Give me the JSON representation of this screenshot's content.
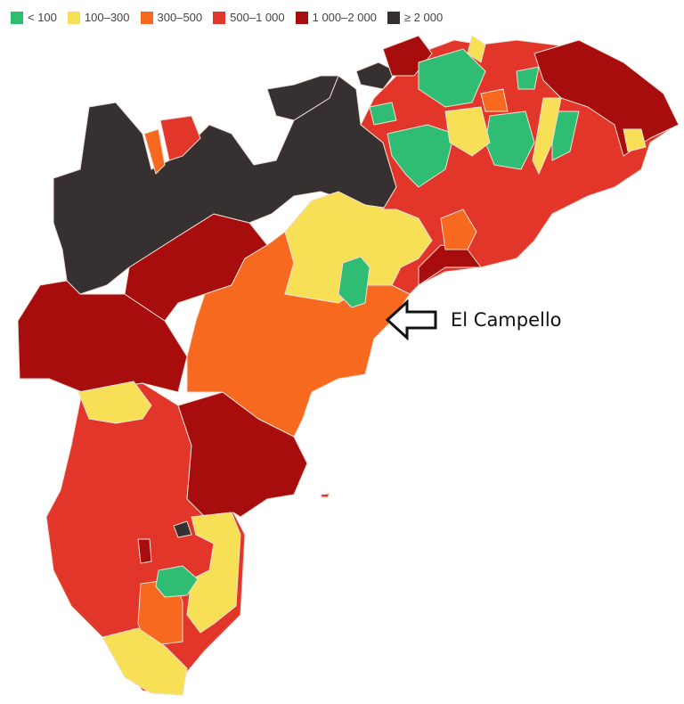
{
  "legend": [
    {
      "label": "< 100",
      "color": "#2ebd72"
    },
    {
      "label": "100–300",
      "color": "#f7df56"
    },
    {
      "label": "300–500",
      "color": "#f6691f"
    },
    {
      "label": "500–1 000",
      "color": "#e3362a"
    },
    {
      "label": "1 000–2 000",
      "color": "#a80d0d"
    },
    {
      "label": "≥ 2 000",
      "color": "#363130"
    }
  ],
  "callout": {
    "label": "El Campello",
    "icon": "arrow-left-icon"
  }
}
